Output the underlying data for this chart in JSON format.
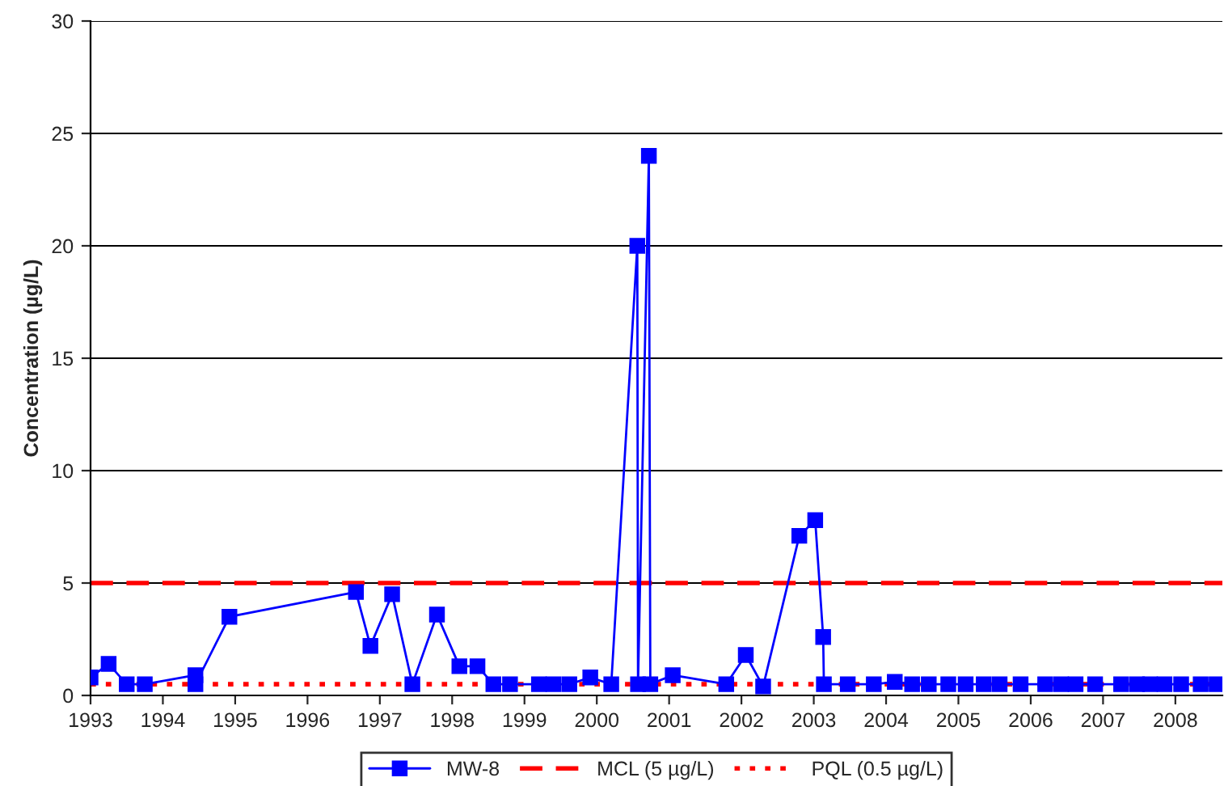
{
  "chart_data": {
    "type": "line",
    "ylabel": "Concentration (µg/L)",
    "series": [
      {
        "name": "MW-8",
        "color": "#0000ff",
        "marker": "square",
        "line_style": "solid",
        "x": [
          1993.0,
          1993.25,
          1993.5,
          1993.75,
          1994.45,
          1994.45,
          1994.92,
          1996.67,
          1996.87,
          1997.17,
          1997.45,
          1997.79,
          1998.1,
          1998.35,
          1998.57,
          1998.8,
          1999.2,
          1999.4,
          1999.62,
          1999.91,
          2000.2,
          2000.56,
          2000.57,
          2000.72,
          2000.74,
          2001.05,
          2001.79,
          2002.06,
          2002.3,
          2002.8,
          2003.02,
          2003.13,
          2003.14,
          2003.47,
          2003.83,
          2004.12,
          2004.36,
          2004.59,
          2004.86,
          2005.1,
          2005.35,
          2005.57,
          2005.86,
          2006.2,
          2006.42,
          2006.62,
          2006.89,
          2007.25,
          2007.47,
          2007.65,
          2007.85,
          2008.08,
          2008.35,
          2008.57
        ],
        "values": [
          0.8,
          1.4,
          0.5,
          0.5,
          0.9,
          0.5,
          3.5,
          4.6,
          2.2,
          4.5,
          0.5,
          3.6,
          1.3,
          1.3,
          0.5,
          0.5,
          0.5,
          0.5,
          0.5,
          0.8,
          0.5,
          20,
          0.5,
          24,
          0.5,
          0.9,
          0.5,
          1.8,
          0.4,
          7.1,
          7.8,
          2.6,
          0.5,
          0.5,
          0.5,
          0.6,
          0.5,
          0.5,
          0.5,
          0.5,
          0.5,
          0.5,
          0.5,
          0.5,
          0.5,
          0.5,
          0.5,
          0.5,
          0.5,
          0.5,
          0.5,
          0.5,
          0.5,
          0.5
        ]
      }
    ],
    "ref_lines": [
      {
        "axis": "y",
        "value": 5,
        "label": "MCL (5 µg/L)",
        "color": "#ff0000",
        "line_style": "dashed"
      },
      {
        "axis": "y",
        "value": 0.5,
        "label": "PQL (0.5 µg/L)",
        "color": "#ff0000",
        "line_style": "dotted"
      }
    ],
    "xlim": [
      1993,
      2008.65
    ],
    "xticks": [
      1993,
      1994,
      1995,
      1996,
      1997,
      1998,
      1999,
      2000,
      2001,
      2002,
      2003,
      2004,
      2005,
      2006,
      2007,
      2008
    ],
    "ylim": [
      0,
      30
    ],
    "yticks": [
      0,
      5,
      10,
      15,
      20,
      25,
      30
    ],
    "grid": "y",
    "legend": "bottom"
  }
}
